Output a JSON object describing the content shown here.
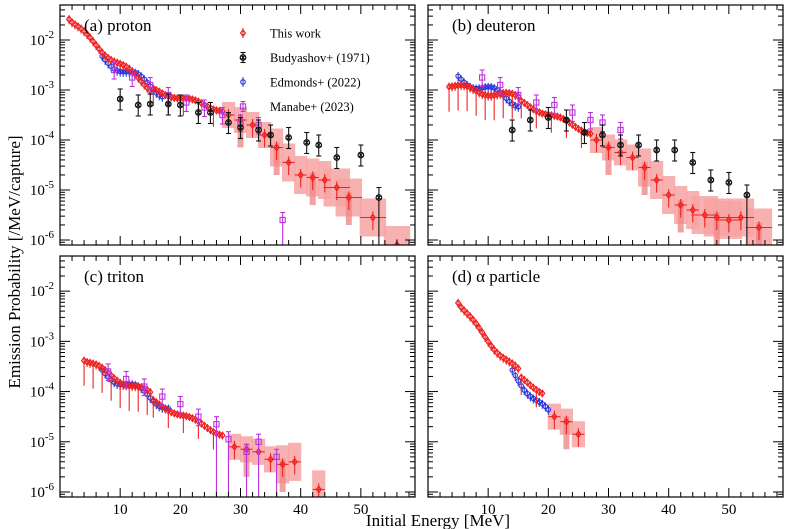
{
  "chart_data": {
    "type": "scatter",
    "xlabel": "Initial Energy [MeV]",
    "ylabel": "Emission Probability [/MeV/capture]",
    "x_range": [
      0,
      59
    ],
    "y_log_range": [
      -6.1,
      -1.3
    ],
    "x_ticks": [
      "10",
      "20",
      "30",
      "40",
      "50"
    ],
    "y_ticks": [
      "10^-6",
      "10^-5",
      "10^-4",
      "10^-3",
      "10^-2"
    ],
    "legend": [
      {
        "name": "This work",
        "marker": "diamond",
        "color": "#ee2222"
      },
      {
        "name": "Budyashov+ (1971)",
        "marker": "cross",
        "color": "#111111"
      },
      {
        "name": "Edmonds+ (2022)",
        "marker": "circle",
        "color": "#2233dd"
      },
      {
        "name": "Manabe+ (2023)",
        "marker": "square",
        "color": "#bb33dd"
      }
    ],
    "panels": [
      {
        "label": "(a) proton",
        "this_work_low_start": 1.5,
        "this_work_low_end": 15,
        "this_work_low_from": -1.55,
        "this_work_low_to": -2.95,
        "this_work_mid_start": 15.5,
        "this_work_mid_end": 27,
        "this_work_mid_from": -3.0,
        "this_work_mid_to": -3.4,
        "this_work_hi": [
          [
            28,
            -3.5
          ],
          [
            30,
            -3.6
          ],
          [
            32,
            -3.7
          ],
          [
            34,
            -3.9
          ],
          [
            36,
            -4.15
          ],
          [
            38,
            -4.45
          ],
          [
            40,
            -4.7
          ],
          [
            42,
            -4.75
          ],
          [
            44,
            -4.8
          ],
          [
            46,
            -4.95
          ],
          [
            48,
            -5.15
          ],
          [
            52,
            -5.55
          ],
          [
            56,
            -6.1
          ]
        ],
        "budyashov": [
          [
            10,
            -3.18
          ],
          [
            13,
            -3.3
          ],
          [
            15,
            -3.28
          ],
          [
            18,
            -3.28
          ],
          [
            20,
            -3.3
          ],
          [
            23,
            -3.45
          ],
          [
            25,
            -3.45
          ],
          [
            28,
            -3.65
          ],
          [
            30,
            -3.75
          ],
          [
            33,
            -3.8
          ],
          [
            35,
            -3.9
          ],
          [
            38,
            -3.95
          ],
          [
            41,
            -4.05
          ],
          [
            43,
            -4.1
          ],
          [
            46,
            -4.35
          ],
          [
            50,
            -4.3
          ],
          [
            53,
            -5.15
          ]
        ],
        "edmonds_start": 7,
        "edmonds_end": 17,
        "edmonds_from": -2.35,
        "edmonds_to": -3.05,
        "manabe": [
          [
            9,
            -2.6
          ],
          [
            12,
            -2.75
          ],
          [
            15,
            -2.9
          ],
          [
            18,
            -3.1
          ],
          [
            21,
            -3.25
          ],
          [
            24,
            -3.35
          ],
          [
            27,
            -3.5
          ],
          [
            30,
            -3.65
          ],
          [
            33,
            -3.7
          ],
          [
            37,
            -5.6
          ]
        ]
      },
      {
        "label": "(b) deuteron",
        "this_work_low_start": 3.5,
        "this_work_low_end": 15,
        "this_work_low_from": -2.9,
        "this_work_low_to": -3.15,
        "this_work_mid_start": 15.5,
        "this_work_mid_end": 27,
        "this_work_mid_from": -3.25,
        "this_work_mid_to": -3.85,
        "this_work_hi": [
          [
            28,
            -4.0
          ],
          [
            30,
            -4.15
          ],
          [
            32,
            -4.25
          ],
          [
            34,
            -4.35
          ],
          [
            36,
            -4.55
          ],
          [
            38,
            -4.8
          ],
          [
            40,
            -5.1
          ],
          [
            42,
            -5.3
          ],
          [
            44,
            -5.4
          ],
          [
            46,
            -5.5
          ],
          [
            48,
            -5.55
          ],
          [
            50,
            -5.6
          ],
          [
            52,
            -5.55
          ],
          [
            55,
            -5.75
          ]
        ],
        "budyashov": [
          [
            14,
            -3.8
          ],
          [
            17,
            -3.6
          ],
          [
            20,
            -3.55
          ],
          [
            23,
            -3.6
          ],
          [
            26,
            -3.85
          ],
          [
            29,
            -3.9
          ],
          [
            32,
            -4.1
          ],
          [
            35,
            -4.1
          ],
          [
            38,
            -4.2
          ],
          [
            41,
            -4.2
          ],
          [
            44,
            -4.45
          ],
          [
            47,
            -4.8
          ],
          [
            50,
            -4.85
          ],
          [
            53,
            -5.1
          ]
        ],
        "edmonds_start": 5,
        "edmonds_end": 15,
        "edmonds_from": -2.75,
        "edmonds_to": -3.25,
        "manabe": [
          [
            9,
            -2.75
          ],
          [
            12,
            -2.9
          ],
          [
            15,
            -3.1
          ],
          [
            18,
            -3.25
          ],
          [
            21,
            -3.3
          ],
          [
            24,
            -3.45
          ],
          [
            27,
            -3.6
          ],
          [
            29,
            -3.65
          ],
          [
            32,
            -3.8
          ]
        ]
      },
      {
        "label": "(c) triton",
        "this_work_low_start": 4,
        "this_work_low_end": 15,
        "this_work_low_from": -3.35,
        "this_work_low_to": -4.05,
        "this_work_mid_start": 15.5,
        "this_work_mid_end": 27,
        "this_work_mid_from": -4.2,
        "this_work_mid_to": -4.85,
        "this_work_hi": [
          [
            29,
            -5.1
          ],
          [
            31,
            -5.15
          ],
          [
            33,
            -5.2
          ],
          [
            35,
            -5.35
          ],
          [
            37,
            -5.45
          ],
          [
            39,
            -5.4
          ],
          [
            43,
            -5.95
          ]
        ],
        "budyashov": [],
        "edmonds_start": 7,
        "edmonds_end": 18,
        "edmonds_from": -3.6,
        "edmonds_to": -4.3,
        "manabe": [
          [
            8,
            -3.6
          ],
          [
            11,
            -3.75
          ],
          [
            14,
            -3.9
          ],
          [
            17,
            -4.1
          ],
          [
            20,
            -4.25
          ],
          [
            23,
            -4.5
          ],
          [
            26,
            -4.65
          ],
          [
            28,
            -4.95
          ],
          [
            31,
            -5.2
          ],
          [
            33,
            -5.0
          ],
          [
            36,
            -5.3
          ]
        ]
      },
      {
        "label": "(d) α particle",
        "this_work_low_start": 5,
        "this_work_low_end": 15,
        "this_work_low_from": -2.2,
        "this_work_low_to": -3.6,
        "this_work_mid_start": 15.5,
        "this_work_mid_end": 19,
        "this_work_mid_from": -3.75,
        "this_work_mid_to": -4.0,
        "this_work_hi": [
          [
            21,
            -4.5
          ],
          [
            23,
            -4.6
          ],
          [
            25,
            -4.85
          ]
        ],
        "budyashov": [],
        "edmonds_start": 14,
        "edmonds_end": 20,
        "edmonds_from": -3.6,
        "edmonds_to": -4.45,
        "manabe": []
      }
    ]
  }
}
